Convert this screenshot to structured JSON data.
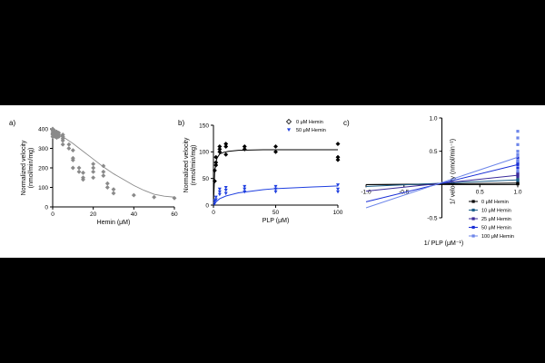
{
  "chart_data": [
    {
      "type": "scatter",
      "panel_label": "a)",
      "xlabel": "Hemin (μM)",
      "ylabel": [
        "Normalized velocity",
        "(nmol/min/mg)"
      ],
      "xlim": [
        0,
        60
      ],
      "ylim": [
        0,
        400
      ],
      "xticks": [
        "0",
        "20",
        "40",
        "60"
      ],
      "yticks": [
        "0",
        "100",
        "200",
        "300",
        "400"
      ],
      "marker_color": "#8a8a8a",
      "line_color": "#8a8a8a",
      "points": {
        "x": [
          0,
          0,
          0,
          0,
          0,
          0,
          0,
          1,
          1,
          1,
          1,
          1,
          2,
          2,
          2,
          2,
          3,
          3,
          3,
          5,
          5,
          5,
          5,
          5,
          8,
          8,
          10,
          10,
          10,
          10,
          13,
          13,
          15,
          15,
          15,
          20,
          20,
          20,
          20,
          25,
          25,
          25,
          27,
          27,
          30,
          30,
          40,
          50,
          60
        ],
        "y": [
          400,
          395,
          390,
          380,
          375,
          370,
          360,
          390,
          385,
          380,
          370,
          360,
          385,
          375,
          365,
          355,
          380,
          370,
          360,
          370,
          360,
          350,
          340,
          320,
          320,
          300,
          290,
          250,
          240,
          200,
          200,
          180,
          175,
          150,
          140,
          220,
          200,
          180,
          150,
          210,
          180,
          160,
          120,
          100,
          90,
          70,
          60,
          50,
          45
        ]
      },
      "fit": {
        "x": [
          0,
          5,
          10,
          15,
          20,
          25,
          30,
          35,
          40,
          45,
          50,
          55,
          60
        ],
        "y": [
          390,
          360,
          325,
          285,
          245,
          205,
          170,
          140,
          110,
          85,
          65,
          55,
          50
        ]
      }
    },
    {
      "type": "scatter",
      "panel_label": "b)",
      "xlabel": "PLP (μM)",
      "ylabel": [
        "Normalized velocity",
        "(nmol/min/mg)"
      ],
      "xlim": [
        0,
        100
      ],
      "ylim": [
        0,
        150
      ],
      "xticks": [
        "0",
        "50",
        "100"
      ],
      "yticks": [
        "0",
        "50",
        "100",
        "150"
      ],
      "legend": "top-right",
      "series": [
        {
          "name": "0 μM Hemin",
          "color": "#000000",
          "marker": "diamond",
          "x": [
            1,
            1,
            2,
            2,
            2,
            5,
            5,
            5,
            10,
            10,
            10,
            25,
            25,
            50,
            50,
            100,
            100,
            100
          ],
          "y": [
            45,
            65,
            75,
            80,
            90,
            100,
            105,
            110,
            95,
            110,
            115,
            110,
            105,
            110,
            100,
            115,
            90,
            85
          ],
          "fit_x": [
            0,
            1,
            2,
            3,
            5,
            8,
            12,
            20,
            40,
            70,
            100
          ],
          "fit_y": [
            0,
            62,
            81,
            89,
            96,
            99,
            101,
            103,
            104,
            104,
            104
          ]
        },
        {
          "name": "50 μM Hemin",
          "color": "#1f3fe0",
          "marker": "triangle-down",
          "x": [
            1,
            1,
            2,
            2,
            5,
            5,
            5,
            10,
            10,
            10,
            25,
            25,
            25,
            50,
            50,
            50,
            100,
            100,
            100
          ],
          "y": [
            3,
            8,
            10,
            15,
            20,
            25,
            30,
            22,
            28,
            33,
            25,
            30,
            35,
            25,
            30,
            35,
            25,
            30,
            38
          ],
          "fit_x": [
            0,
            2,
            5,
            10,
            20,
            30,
            40,
            50,
            60,
            70,
            80,
            90,
            100
          ],
          "fit_y": [
            0,
            6,
            12,
            17,
            23,
            26,
            29,
            31,
            32,
            33,
            34,
            35,
            36
          ]
        }
      ]
    },
    {
      "type": "line",
      "panel_label": "c)",
      "xlabel": "1/ PLP (μM⁻¹)",
      "ylabel": "1/ velocity (nmol/min⁻¹)",
      "xlim": [
        -1.0,
        1.0
      ],
      "ylim": [
        -0.5,
        1.0
      ],
      "xticks": [
        "-1.0",
        "-0.5",
        "0.5",
        "1.0"
      ],
      "yticks": [
        "-0.5",
        "0.5",
        "1.0"
      ],
      "legend": "bottom-right",
      "series": [
        {
          "name": "0 μM Hemin",
          "color": "#000000",
          "slope": 0.0117,
          "intercept": 0.0093,
          "data_y": [
            0.01,
            0.02,
            0.015,
            0.012
          ]
        },
        {
          "name": "10 μM Hemin",
          "color": "#1d5f8a",
          "slope": 0.05,
          "intercept": 0.02,
          "data_y": [
            0.06,
            0.08,
            0.07
          ]
        },
        {
          "name": "25 μM Hemin",
          "color": "#3a2a9a",
          "slope": 0.12,
          "intercept": 0.02,
          "data_y": [
            0.12,
            0.16,
            0.18,
            0.14
          ]
        },
        {
          "name": "50 μM Hemin",
          "color": "#1a2fd6",
          "slope": 0.28,
          "intercept": 0.02,
          "data_y": [
            0.25,
            0.3,
            0.35,
            0.4,
            0.32
          ]
        },
        {
          "name": "100 μM Hemin",
          "color": "#6d86ea",
          "slope": 0.38,
          "intercept": 0.03,
          "data_y": [
            0.2,
            0.35,
            0.5,
            0.6,
            0.7,
            0.8,
            0.45
          ]
        }
      ]
    }
  ]
}
